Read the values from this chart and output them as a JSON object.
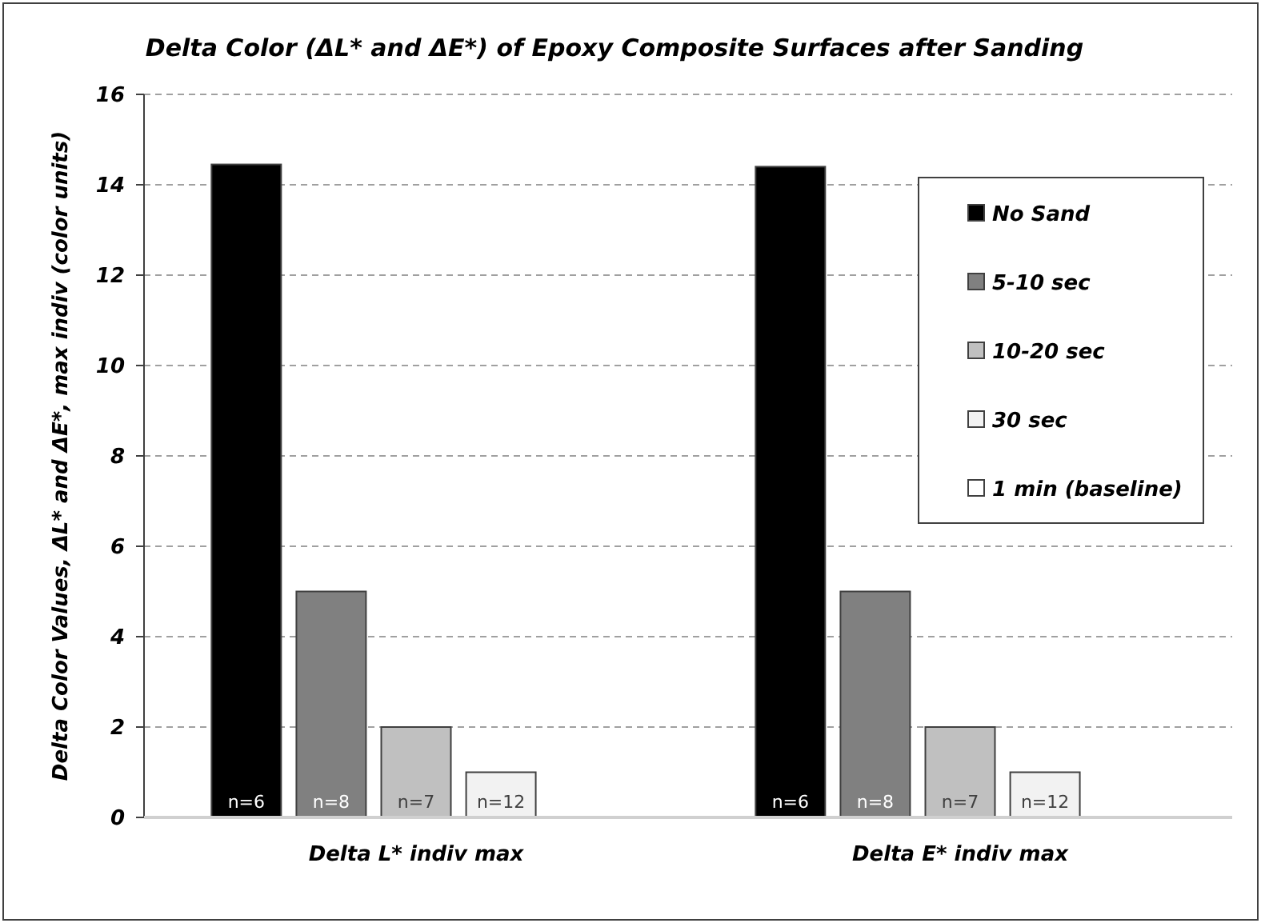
{
  "chart_data": {
    "type": "bar",
    "title": "Delta Color (ΔL* and ΔE*) of Epoxy Composite Surfaces after Sanding",
    "ylabel": "Delta Color Values, ΔL* and ΔE*, max indiv (color units)",
    "categories": [
      "Delta L* indiv max",
      "Delta E* indiv max"
    ],
    "series": [
      {
        "name": "No Sand",
        "color": "#000000",
        "values": [
          14.45,
          14.4
        ]
      },
      {
        "name": "5-10 sec",
        "color": "#808080",
        "values": [
          5.0,
          5.0
        ]
      },
      {
        "name": "10-20 sec",
        "color": "#c0c0c0",
        "values": [
          2.0,
          2.0
        ]
      },
      {
        "name": "30 sec",
        "color": "#f2f2f2",
        "values": [
          1.0,
          1.0
        ]
      },
      {
        "name": "1 min (baseline)",
        "color": "#ffffff",
        "values": [
          0,
          0
        ]
      }
    ],
    "annotations": [
      "n=6",
      "n=8",
      "n=7",
      "n=12",
      "n=6",
      "n=8",
      "n=7",
      "n=12"
    ],
    "ylim": [
      0,
      16
    ],
    "yticks": [
      0,
      2,
      4,
      6,
      8,
      10,
      12,
      14,
      16
    ],
    "grid": "y",
    "legend": "top right"
  }
}
